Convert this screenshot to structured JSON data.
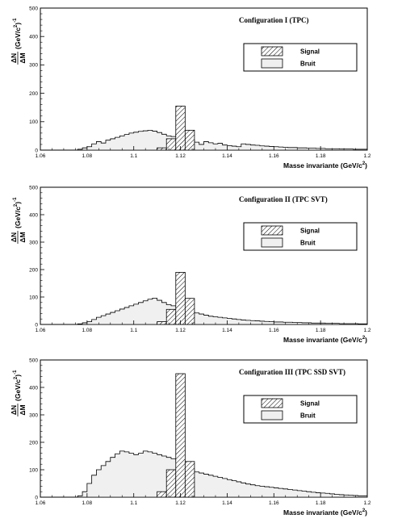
{
  "chart_data": [
    {
      "type": "bar",
      "title": "Configuration I (TPC)",
      "xlabel_main": "Masse invariante (GeV/c",
      "xlabel_exp": "2",
      "xlabel_tail": ")",
      "ylabel_num": "ΔN",
      "ylabel_den": "ΔM",
      "ylabel_unit": "(GeV/c",
      "ylabel_exp": "2",
      "ylabel_tail": ")",
      "ylabel_exp2": "-1",
      "xlim": [
        1.06,
        1.2
      ],
      "ylim": [
        0,
        500
      ],
      "x_ticks": [
        "1.06",
        "1.08",
        "1.1",
        "1.12",
        "1.14",
        "1.16",
        "1.18",
        "1.2"
      ],
      "y_ticks": [
        "0",
        "100",
        "200",
        "300",
        "400",
        "500"
      ],
      "legend": [
        "Signal",
        "Bruit"
      ],
      "bin_width": 0.002,
      "bins_start": 1.076,
      "background": [
        3,
        8,
        12,
        22,
        30,
        25,
        35,
        40,
        45,
        50,
        55,
        60,
        63,
        66,
        68,
        70,
        67,
        62,
        56,
        50,
        48,
        55,
        60,
        45,
        35,
        28,
        20,
        30,
        26,
        22,
        24,
        18,
        16,
        14,
        12,
        22,
        20,
        18,
        17,
        15,
        14,
        13,
        12,
        11,
        10,
        9,
        9,
        8,
        8,
        7,
        7,
        6,
        6,
        5,
        5,
        5,
        4,
        4,
        4,
        3,
        3,
        3
      ],
      "signal": {
        "start": 1.11,
        "values": [
          8,
          40,
          155,
          70
        ]
      }
    },
    {
      "type": "bar",
      "title": "Configuration II (TPC SVT)",
      "xlabel_main": "Masse invariante (GeV/c",
      "xlabel_exp": "2",
      "xlabel_tail": ")",
      "ylabel_num": "ΔN",
      "ylabel_den": "ΔM",
      "ylabel_unit": "(GeV/c",
      "ylabel_exp": "2",
      "ylabel_tail": ")",
      "ylabel_exp2": "-1",
      "xlim": [
        1.06,
        1.2
      ],
      "ylim": [
        0,
        500
      ],
      "x_ticks": [
        "1.06",
        "1.08",
        "1.1",
        "1.12",
        "1.14",
        "1.16",
        "1.18",
        "1.2"
      ],
      "y_ticks": [
        "0",
        "100",
        "200",
        "300",
        "400",
        "500"
      ],
      "legend": [
        "Signal",
        "Bruit"
      ],
      "bin_width": 0.002,
      "bins_start": 1.076,
      "background": [
        2,
        6,
        10,
        18,
        26,
        32,
        38,
        44,
        50,
        56,
        62,
        68,
        74,
        80,
        86,
        92,
        96,
        88,
        80,
        72,
        68,
        64,
        60,
        54,
        48,
        42,
        38,
        34,
        30,
        28,
        26,
        24,
        22,
        20,
        18,
        16,
        15,
        14,
        13,
        12,
        11,
        10,
        9,
        9,
        8,
        8,
        7,
        7,
        6,
        6,
        5,
        5,
        5,
        4,
        4,
        4,
        3,
        3,
        3,
        3,
        2,
        2
      ],
      "signal": {
        "start": 1.11,
        "values": [
          10,
          55,
          190,
          95
        ]
      }
    },
    {
      "type": "bar",
      "title": "Configuration III (TPC SSD SVT)",
      "xlabel_main": "Masse invariante (GeV/c",
      "xlabel_exp": "2",
      "xlabel_tail": ")",
      "ylabel_num": "ΔN",
      "ylabel_den": "ΔM",
      "ylabel_unit": "(GeV/c",
      "ylabel_exp": "2",
      "ylabel_tail": ")",
      "ylabel_exp2": "-1",
      "xlim": [
        1.06,
        1.2
      ],
      "ylim": [
        0,
        500
      ],
      "x_ticks": [
        "1.06",
        "1.08",
        "1.1",
        "1.12",
        "1.14",
        "1.16",
        "1.18",
        "1.2"
      ],
      "y_ticks": [
        "0",
        "100",
        "200",
        "300",
        "400",
        "500"
      ],
      "legend": [
        "Signal",
        "Bruit"
      ],
      "bin_width": 0.002,
      "bins_start": 1.076,
      "background": [
        5,
        20,
        50,
        80,
        100,
        115,
        130,
        145,
        158,
        168,
        165,
        160,
        155,
        160,
        168,
        165,
        160,
        155,
        150,
        145,
        140,
        130,
        120,
        110,
        100,
        92,
        88,
        84,
        80,
        76,
        72,
        68,
        64,
        60,
        56,
        52,
        48,
        45,
        42,
        40,
        38,
        36,
        34,
        32,
        30,
        28,
        26,
        24,
        22,
        20,
        18,
        16,
        15,
        14,
        12,
        10,
        9,
        8,
        7,
        6,
        5,
        5
      ],
      "signal": {
        "start": 1.11,
        "values": [
          20,
          100,
          450,
          130
        ]
      }
    }
  ]
}
